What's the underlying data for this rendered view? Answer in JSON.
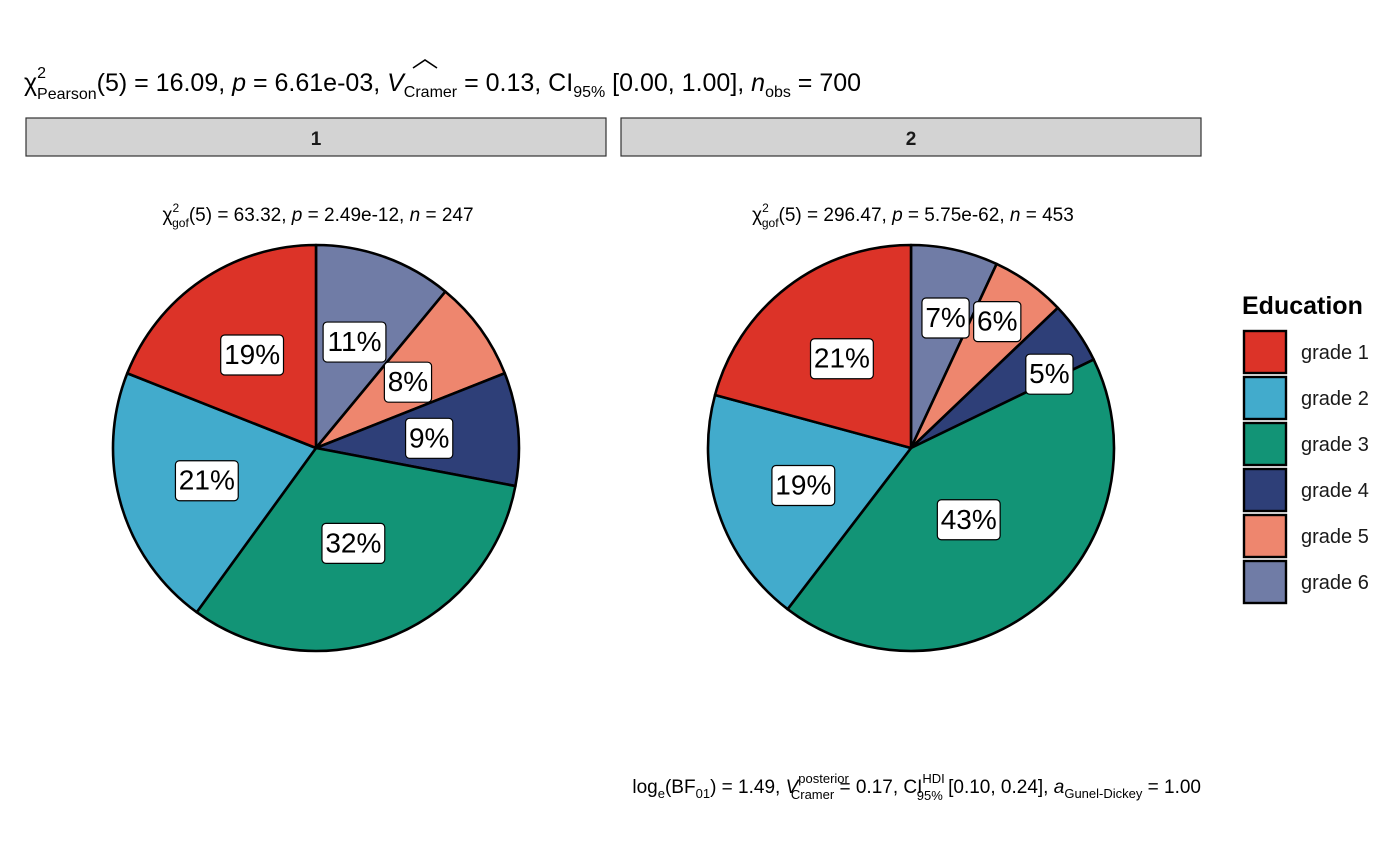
{
  "title": "χ²Pearson(5) = 16.09, p = 6.61e-03, V̂Cramer = 0.13, CI95% [0.00, 1.00], nobs = 700",
  "title_parts": {
    "chi": "χ",
    "sup": "2",
    "sub": "Pearson",
    "rest1": "(5) = 16.09, ",
    "p": "p",
    "rest2": " = 6.61e-03, ",
    "v": "V",
    "v_sub": "Cramer",
    "rest3": " = 0.13, CI",
    "ci_sub": "95%",
    "rest4": " [0.00, 1.00], ",
    "n": "n",
    "n_sub": "obs",
    "rest5": " = 700"
  },
  "caption_parts": {
    "log": "log",
    "log_sub": "e",
    "bf": "(BF",
    "bf_sub": "01",
    "rest1": ") = 1.49, ",
    "v": "V",
    "v_sup": "posterior",
    "v_sub": "Cramer",
    "rest2": " = 0.17, CI",
    "ci_sup": "HDI",
    "ci_sub": "95%",
    "rest3": " [0.10, 0.24], ",
    "a": "a",
    "a_sub": "Gunel-Dickey",
    "rest4": " = 1.00"
  },
  "colors": {
    "grade 1": "#DC3328",
    "grade 2": "#42ABCC",
    "grade 3": "#129476",
    "grade 4": "#2E3F78",
    "grade 5": "#EE866E",
    "grade 6": "#707CA6"
  },
  "chart_data": [
    {
      "type": "pie",
      "facet": "1",
      "subtitle": "χ²gof(5) = 63.32, p = 2.49e-12, n = 247",
      "subtitle_parts": {
        "chi": "χ",
        "sup": "2",
        "sub": "gof",
        "rest1": "(5) = 63.32,  ",
        "p": "p",
        "rest2": " = 2.49e-12,  ",
        "n": "n",
        "rest3": " = 247"
      },
      "categories": [
        "grade 1",
        "grade 2",
        "grade 3",
        "grade 4",
        "grade 5",
        "grade 6"
      ],
      "values": [
        19,
        21,
        32,
        9,
        8,
        11
      ],
      "labels": [
        "19%",
        "21%",
        "32%",
        "9%",
        "8%",
        "11%"
      ]
    },
    {
      "type": "pie",
      "facet": "2",
      "subtitle": "χ²gof(5) = 296.47, p = 5.75e-62, n = 453",
      "subtitle_parts": {
        "chi": "χ",
        "sup": "2",
        "sub": "gof",
        "rest1": "(5) = 296.47,  ",
        "p": "p",
        "rest2": " = 5.75e-62,  ",
        "n": "n",
        "rest3": " = 453"
      },
      "categories": [
        "grade 1",
        "grade 2",
        "grade 3",
        "grade 4",
        "grade 5",
        "grade 6"
      ],
      "values": [
        21,
        19,
        43,
        5,
        6,
        7
      ],
      "labels": [
        "21%",
        "19%",
        "43%",
        "5%",
        "6%",
        "7%"
      ]
    }
  ],
  "legend": {
    "title": "Education",
    "items": [
      "grade 1",
      "grade 2",
      "grade 3",
      "grade 4",
      "grade 5",
      "grade 6"
    ]
  }
}
